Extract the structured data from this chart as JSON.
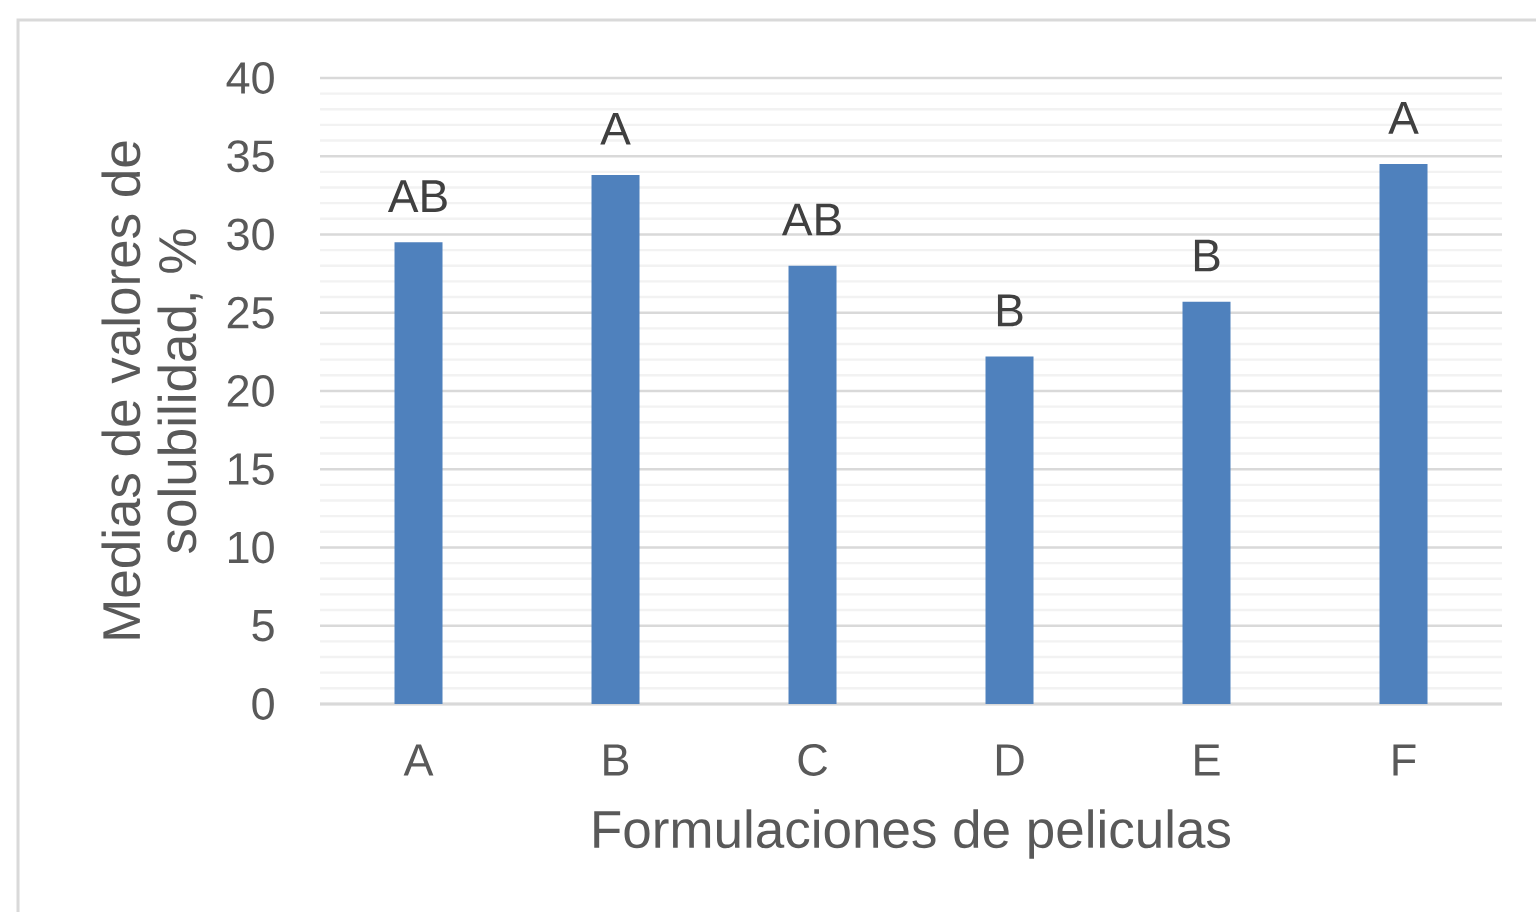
{
  "chart_data": {
    "type": "bar",
    "xlabel": "Formulaciones de peliculas",
    "ylabel": "Medias de valores de solubilidad, %",
    "categories": [
      "A",
      "B",
      "C",
      "D",
      "E",
      "F"
    ],
    "values": [
      29.5,
      33.8,
      28.0,
      22.2,
      25.7,
      34.5
    ],
    "color": "#4f81bd",
    "value_labels": [
      "AB",
      "A",
      "AB",
      "B",
      "B",
      "A"
    ],
    "ylim": [
      0,
      40
    ],
    "yticks": [
      0,
      5,
      10,
      15,
      20,
      25,
      30,
      35,
      40
    ],
    "grid": "y"
  }
}
